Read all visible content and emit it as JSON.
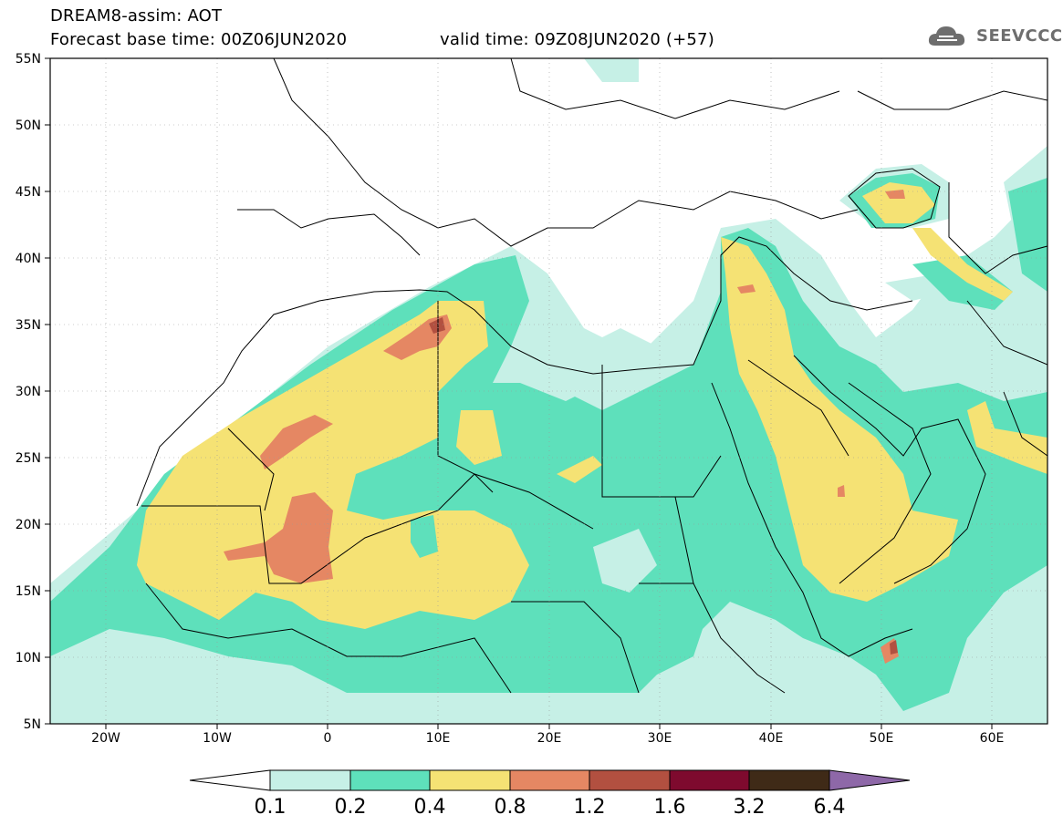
{
  "header": {
    "title_line1": "DREAM8-assim: AOT",
    "base_time": "Forecast base time: 00Z06JUN2020",
    "valid_time": "valid time: 09Z08JUN2020 (+57)"
  },
  "logo": {
    "text": "SEEVCCC",
    "icon": "cloud-logo-icon"
  },
  "map": {
    "y_ticks": [
      "55N",
      "50N",
      "45N",
      "40N",
      "35N",
      "30N",
      "25N",
      "20N",
      "15N",
      "10N",
      "5N"
    ],
    "x_ticks": [
      "20W",
      "10W",
      "0",
      "10E",
      "20E",
      "30E",
      "40E",
      "50E",
      "60E"
    ],
    "colors": {
      "c01": "#c6f0e6",
      "c02": "#5ee0bb",
      "c04": "#f5e274",
      "c08": "#e58763",
      "c12": "#b25040",
      "c16": "#7e0a2e",
      "c32": "#3f2a17",
      "c64": "#8e68a8"
    }
  },
  "colorbar": {
    "labels": [
      "0.1",
      "0.2",
      "0.4",
      "0.8",
      "1.2",
      "1.6",
      "3.2",
      "6.4"
    ],
    "colors": [
      "#ffffff",
      "#c6f0e6",
      "#5ee0bb",
      "#f5e274",
      "#e58763",
      "#b25040",
      "#7e0a2e",
      "#3f2a17",
      "#8e68a8"
    ]
  }
}
